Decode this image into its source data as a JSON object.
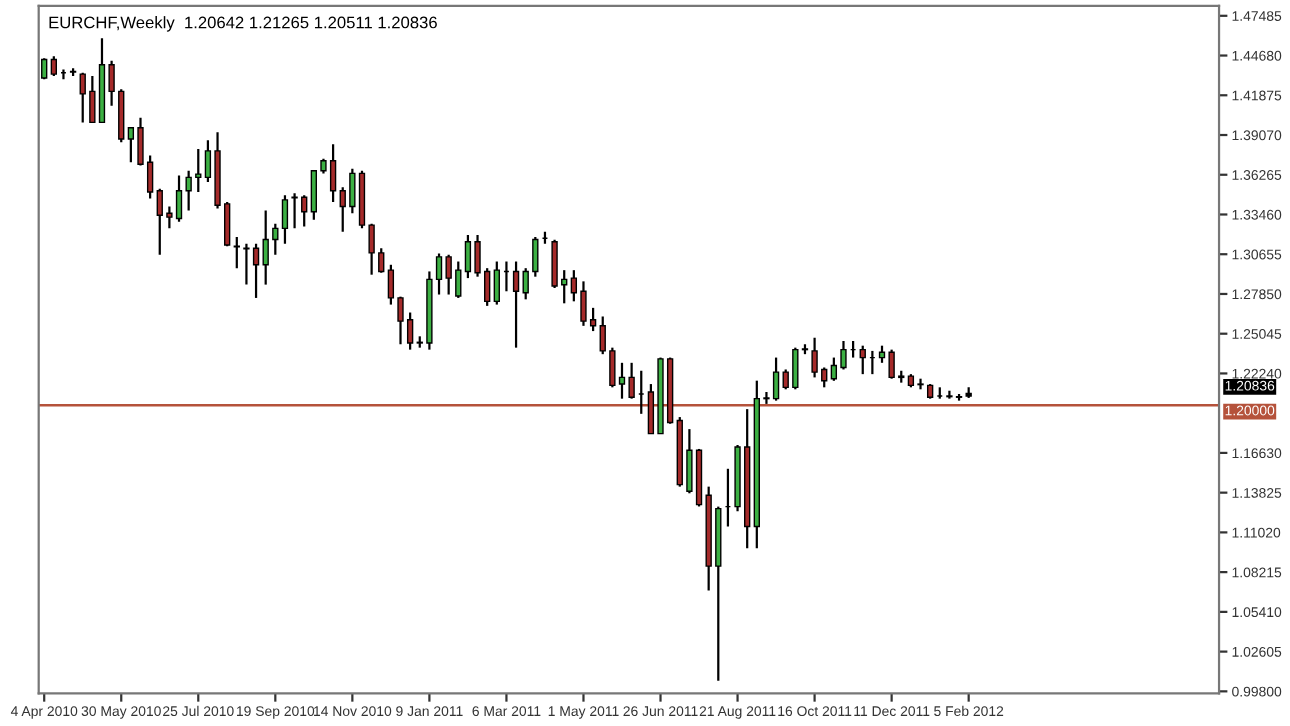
{
  "chart_data": {
    "type": "candlestick",
    "title": "EURCHF,Weekly  1.20642 1.21265 1.20511 1.20836",
    "x": [
      "2010-04-04",
      "2010-04-11",
      "2010-04-18",
      "2010-04-25",
      "2010-05-02",
      "2010-05-09",
      "2010-05-16",
      "2010-05-23",
      "2010-05-30",
      "2010-06-06",
      "2010-06-13",
      "2010-06-20",
      "2010-06-27",
      "2010-07-04",
      "2010-07-11",
      "2010-07-18",
      "2010-07-25",
      "2010-08-01",
      "2010-08-08",
      "2010-08-15",
      "2010-08-22",
      "2010-08-29",
      "2010-09-05",
      "2010-09-12",
      "2010-09-19",
      "2010-09-26",
      "2010-10-03",
      "2010-10-10",
      "2010-10-17",
      "2010-10-24",
      "2010-10-31",
      "2010-11-07",
      "2010-11-14",
      "2010-11-21",
      "2010-11-28",
      "2010-12-05",
      "2010-12-12",
      "2010-12-19",
      "2010-12-26",
      "2011-01-02",
      "2011-01-09",
      "2011-01-16",
      "2011-01-23",
      "2011-01-30",
      "2011-02-06",
      "2011-02-13",
      "2011-02-20",
      "2011-02-27",
      "2011-03-06",
      "2011-03-13",
      "2011-03-20",
      "2011-03-27",
      "2011-04-03",
      "2011-04-10",
      "2011-04-17",
      "2011-04-24",
      "2011-05-01",
      "2011-05-08",
      "2011-05-15",
      "2011-05-22",
      "2011-05-29",
      "2011-06-05",
      "2011-06-12",
      "2011-06-19",
      "2011-06-26",
      "2011-07-03",
      "2011-07-10",
      "2011-07-17",
      "2011-07-24",
      "2011-07-31",
      "2011-08-07",
      "2011-08-14",
      "2011-08-21",
      "2011-08-28",
      "2011-09-04",
      "2011-09-11",
      "2011-09-18",
      "2011-09-25",
      "2011-10-02",
      "2011-10-09",
      "2011-10-16",
      "2011-10-23",
      "2011-10-30",
      "2011-11-06",
      "2011-11-13",
      "2011-11-20",
      "2011-11-27",
      "2011-12-04",
      "2011-12-11",
      "2011-12-18",
      "2011-12-25",
      "2012-01-01",
      "2012-01-08",
      "2012-01-15",
      "2012-01-22",
      "2012-01-29",
      "2012-02-05"
    ],
    "ohlc": [
      [
        1.4309,
        1.4449,
        1.43,
        1.444
      ],
      [
        1.444,
        1.4463,
        1.4323,
        1.4337
      ],
      [
        1.4346,
        1.437,
        1.43,
        1.4346
      ],
      [
        1.4356,
        1.4379,
        1.4323,
        1.4351
      ],
      [
        1.4337,
        1.4346,
        1.3996,
        1.4197
      ],
      [
        1.4215,
        1.4323,
        1.3996,
        1.3996
      ],
      [
        1.3996,
        1.459,
        1.3996,
        1.4403
      ],
      [
        1.4403,
        1.4431,
        1.4113,
        1.4215
      ],
      [
        1.4215,
        1.423,
        1.3856,
        1.3879
      ],
      [
        1.3879,
        1.3958,
        1.3715,
        1.3958
      ],
      [
        1.3958,
        1.4028,
        1.3692,
        1.3701
      ],
      [
        1.3715,
        1.3762,
        1.3458,
        1.3505
      ],
      [
        1.3514,
        1.3528,
        1.3061,
        1.3341
      ],
      [
        1.3355,
        1.3402,
        1.3248,
        1.3327
      ],
      [
        1.3318,
        1.3622,
        1.3295,
        1.3514
      ],
      [
        1.3514,
        1.3655,
        1.3374,
        1.3608
      ],
      [
        1.3608,
        1.3809,
        1.3505,
        1.3631
      ],
      [
        1.3608,
        1.387,
        1.3575,
        1.3795
      ],
      [
        1.3795,
        1.3926,
        1.3388,
        1.3411
      ],
      [
        1.3421,
        1.3435,
        1.3122,
        1.3131
      ],
      [
        1.3122,
        1.3187,
        1.2967,
        1.3117
      ],
      [
        1.3108,
        1.314,
        1.2851,
        1.3103
      ],
      [
        1.3108,
        1.314,
        1.2757,
        1.2991
      ],
      [
        1.2991,
        1.3374,
        1.2851,
        1.3169
      ],
      [
        1.3169,
        1.3281,
        1.3061,
        1.3248
      ],
      [
        1.3248,
        1.3482,
        1.314,
        1.3449
      ],
      [
        1.3463,
        1.3496,
        1.3248,
        1.3468
      ],
      [
        1.3468,
        1.3482,
        1.3262,
        1.3365
      ],
      [
        1.3365,
        1.3655,
        1.3309,
        1.3655
      ],
      [
        1.3655,
        1.3739,
        1.3636,
        1.3725
      ],
      [
        1.3725,
        1.3842,
        1.3435,
        1.3514
      ],
      [
        1.3514,
        1.3538,
        1.3225,
        1.3402
      ],
      [
        1.3402,
        1.3669,
        1.3355,
        1.3636
      ],
      [
        1.3636,
        1.3655,
        1.3248,
        1.3271
      ],
      [
        1.3271,
        1.3281,
        1.2921,
        1.3075
      ],
      [
        1.3075,
        1.3108,
        1.2935,
        1.2944
      ],
      [
        1.2953,
        1.2991,
        1.271,
        1.2757
      ],
      [
        1.2757,
        1.2766,
        1.243,
        1.2593
      ],
      [
        1.2603,
        1.2654,
        1.2392,
        1.2439
      ],
      [
        1.2439,
        1.2486,
        1.2406,
        1.2444
      ],
      [
        1.2439,
        1.2944,
        1.2392,
        1.2888
      ],
      [
        1.2888,
        1.307,
        1.2781,
        1.3047
      ],
      [
        1.3047,
        1.3061,
        1.2781,
        1.2897
      ],
      [
        1.2771,
        1.3014,
        1.2757,
        1.2953
      ],
      [
        1.2944,
        1.3201,
        1.2897,
        1.3154
      ],
      [
        1.3154,
        1.3201,
        1.2907,
        1.2935
      ],
      [
        1.2944,
        1.2967,
        1.2701,
        1.2733
      ],
      [
        1.2733,
        1.3014,
        1.271,
        1.2953
      ],
      [
        1.2944,
        1.3014,
        1.2804,
        1.2944
      ],
      [
        1.2944,
        1.3014,
        1.2406,
        1.2804
      ],
      [
        1.2794,
        1.2967,
        1.2747,
        1.2944
      ],
      [
        1.2944,
        1.3187,
        1.2907,
        1.3169
      ],
      [
        1.3178,
        1.3225,
        1.314,
        1.3178
      ],
      [
        1.3154,
        1.3168,
        1.2827,
        1.2841
      ],
      [
        1.285,
        1.2953,
        1.2719,
        1.2888
      ],
      [
        1.2897,
        1.2953,
        1.2733,
        1.2794
      ],
      [
        1.2804,
        1.2874,
        1.256,
        1.2593
      ],
      [
        1.2603,
        1.2687,
        1.2523,
        1.2561
      ],
      [
        1.2561,
        1.2626,
        1.236,
        1.2383
      ],
      [
        1.2383,
        1.2406,
        1.2126,
        1.214
      ],
      [
        1.2149,
        1.2299,
        1.2046,
        1.2196
      ],
      [
        1.2196,
        1.2299,
        1.2046,
        1.2056
      ],
      [
        1.2079,
        1.2243,
        1.1939,
        1.2079
      ],
      [
        1.2093,
        1.2149,
        1.1799,
        1.1799
      ],
      [
        1.1799,
        1.2336,
        1.1799,
        1.2327
      ],
      [
        1.2327,
        1.2336,
        1.1869,
        1.1878
      ],
      [
        1.1892,
        1.1916,
        1.1425,
        1.1439
      ],
      [
        1.1392,
        1.1831,
        1.1378,
        1.1682
      ],
      [
        1.1682,
        1.1691,
        1.1285,
        1.1298
      ],
      [
        1.1364,
        1.1425,
        1.0691,
        1.0864
      ],
      [
        1.0864,
        1.1284,
        1.0055,
        1.127
      ],
      [
        1.1284,
        1.1551,
        1.1144,
        1.1284
      ],
      [
        1.1284,
        1.1719,
        1.1252,
        1.1705
      ],
      [
        1.1705,
        1.1972,
        1.099,
        1.1144
      ],
      [
        1.1144,
        1.2173,
        1.099,
        1.2046
      ],
      [
        1.2046,
        1.2093,
        1.2009,
        1.2051
      ],
      [
        1.2046,
        1.2336,
        1.2032,
        1.2233
      ],
      [
        1.2233,
        1.2252,
        1.2112,
        1.2126
      ],
      [
        1.2126,
        1.2406,
        1.2112,
        1.2392
      ],
      [
        1.2392,
        1.243,
        1.236,
        1.2397
      ],
      [
        1.2383,
        1.2476,
        1.2196,
        1.2233
      ],
      [
        1.2252,
        1.2266,
        1.2126,
        1.2172
      ],
      [
        1.2187,
        1.2336,
        1.2172,
        1.228
      ],
      [
        1.2266,
        1.2453,
        1.2252,
        1.2392
      ],
      [
        1.2392,
        1.2453,
        1.2336,
        1.2392
      ],
      [
        1.2392,
        1.242,
        1.2219,
        1.2336
      ],
      [
        1.2336,
        1.2383,
        1.2219,
        1.2336
      ],
      [
        1.2336,
        1.242,
        1.2299,
        1.2374
      ],
      [
        1.2374,
        1.2392,
        1.2187,
        1.2196
      ],
      [
        1.2205,
        1.2243,
        1.2159,
        1.2196
      ],
      [
        1.2205,
        1.2219,
        1.2126,
        1.214
      ],
      [
        1.2149,
        1.2187,
        1.2112,
        1.2145
      ],
      [
        1.214,
        1.2149,
        1.2046,
        1.2056
      ],
      [
        1.2065,
        1.2126,
        1.2046,
        1.2065
      ],
      [
        1.2065,
        1.2102,
        1.2046,
        1.206
      ],
      [
        1.206,
        1.2079,
        1.2032,
        1.2056
      ],
      [
        1.20642,
        1.21265,
        1.20511,
        1.20836
      ]
    ],
    "colors": [
      "#3cb043",
      "#a52a2a",
      "#000000",
      "#000000",
      "#a52a2a",
      "#a52a2a",
      "#3cb043",
      "#a52a2a",
      "#a52a2a",
      "#3cb043",
      "#a52a2a",
      "#a52a2a",
      "#a52a2a",
      "#a52a2a",
      "#3cb043",
      "#3cb043",
      "#3cb043",
      "#3cb043",
      "#a52a2a",
      "#a52a2a",
      "#000000",
      "#000000",
      "#a52a2a",
      "#3cb043",
      "#3cb043",
      "#3cb043",
      "#000000",
      "#a52a2a",
      "#3cb043",
      "#3cb043",
      "#a52a2a",
      "#a52a2a",
      "#3cb043",
      "#a52a2a",
      "#a52a2a",
      "#a52a2a",
      "#a52a2a",
      "#a52a2a",
      "#a52a2a",
      "#000000",
      "#3cb043",
      "#3cb043",
      "#a52a2a",
      "#3cb043",
      "#3cb043",
      "#a52a2a",
      "#a52a2a",
      "#3cb043",
      "#000000",
      "#a52a2a",
      "#3cb043",
      "#3cb043",
      "#000000",
      "#a52a2a",
      "#3cb043",
      "#a52a2a",
      "#a52a2a",
      "#a52a2a",
      "#a52a2a",
      "#a52a2a",
      "#3cb043",
      "#a52a2a",
      "#000000",
      "#a52a2a",
      "#3cb043",
      "#a52a2a",
      "#a52a2a",
      "#3cb043",
      "#a52a2a",
      "#a52a2a",
      "#3cb043",
      "#000000",
      "#3cb043",
      "#a52a2a",
      "#3cb043",
      "#000000",
      "#3cb043",
      "#a52a2a",
      "#3cb043",
      "#000000",
      "#a52a2a",
      "#a52a2a",
      "#3cb043",
      "#3cb043",
      "#000000",
      "#a52a2a",
      "#000000",
      "#3cb043",
      "#a52a2a",
      "#000000",
      "#a52a2a",
      "#000000",
      "#a52a2a",
      "#000000",
      "#000000",
      "#000000",
      "#000000"
    ],
    "xlim": [
      "2010-03-31",
      "2012-08-05"
    ],
    "xticks": [
      {
        "value": "2010-04-04",
        "label": "4 Apr 2010"
      },
      {
        "value": "2010-05-30",
        "label": "30 May 2010"
      },
      {
        "value": "2010-07-25",
        "label": "25 Jul 2010"
      },
      {
        "value": "2010-09-19",
        "label": "19 Sep 2010"
      },
      {
        "value": "2010-11-14",
        "label": "14 Nov 2010"
      },
      {
        "value": "2011-01-09",
        "label": "9 Jan 2011"
      },
      {
        "value": "2011-03-06",
        "label": "6 Mar 2011"
      },
      {
        "value": "2011-05-01",
        "label": "1 May 2011"
      },
      {
        "value": "2011-06-26",
        "label": "26 Jun 2011"
      },
      {
        "value": "2011-08-21",
        "label": "21 Aug 2011"
      },
      {
        "value": "2011-10-16",
        "label": "16 Oct 2011"
      },
      {
        "value": "2011-12-11",
        "label": "11 Dec 2011"
      },
      {
        "value": "2012-02-05",
        "label": "5 Feb 2012"
      }
    ],
    "ylim": [
      0.9966,
      1.4819
    ],
    "yticks": [
      {
        "value": 1.47485,
        "label": "1.47485"
      },
      {
        "value": 1.4468,
        "label": "1.44680"
      },
      {
        "value": 1.41875,
        "label": "1.41875"
      },
      {
        "value": 1.3907,
        "label": "1.39070"
      },
      {
        "value": 1.36265,
        "label": "1.36265"
      },
      {
        "value": 1.3346,
        "label": "1.33460"
      },
      {
        "value": 1.30655,
        "label": "1.30655"
      },
      {
        "value": 1.2785,
        "label": "1.27850"
      },
      {
        "value": 1.25045,
        "label": "1.25045"
      },
      {
        "value": 1.2224,
        "label": "1.22240"
      },
      {
        "value": 1.1663,
        "label": "1.16630"
      },
      {
        "value": 1.13825,
        "label": "1.13825"
      },
      {
        "value": 1.1102,
        "label": "1.11020"
      },
      {
        "value": 1.08215,
        "label": "1.08215"
      },
      {
        "value": 1.0541,
        "label": "1.05410"
      },
      {
        "value": 1.02605,
        "label": "1.02605"
      },
      {
        "value": 0.998,
        "label": "0.99800"
      }
    ],
    "ref_lines": [
      {
        "axis": "y",
        "value": 1.2,
        "label": "1.20000",
        "color": "#b5523b"
      }
    ],
    "annotations": [
      "1.20836"
    ],
    "grid": false,
    "legend": false
  }
}
